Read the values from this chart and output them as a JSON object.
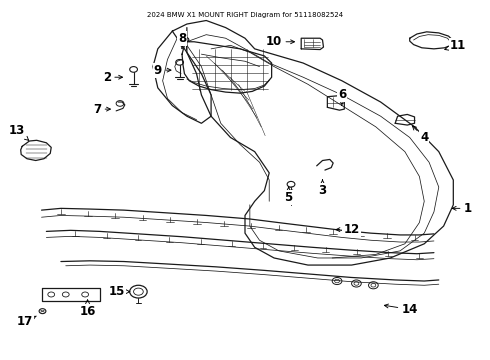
{
  "title": "2024 BMW X1 MOUNT RIGHT Diagram for 51118082524",
  "bg": "#ffffff",
  "lc": "#1a1a1a",
  "figsize": [
    4.9,
    3.6
  ],
  "dpi": 100,
  "font_size": 8.5,
  "label_positions": {
    "1": [
      0.96,
      0.42,
      0.92,
      0.42
    ],
    "2": [
      0.215,
      0.79,
      0.255,
      0.79
    ],
    "3": [
      0.66,
      0.47,
      0.66,
      0.51
    ],
    "4": [
      0.87,
      0.62,
      0.84,
      0.66
    ],
    "5": [
      0.59,
      0.45,
      0.59,
      0.49
    ],
    "6": [
      0.7,
      0.74,
      0.7,
      0.71
    ],
    "7": [
      0.195,
      0.7,
      0.23,
      0.7
    ],
    "8": [
      0.37,
      0.9,
      0.37,
      0.87
    ],
    "9": [
      0.32,
      0.81,
      0.355,
      0.81
    ],
    "10": [
      0.56,
      0.89,
      0.61,
      0.89
    ],
    "11": [
      0.94,
      0.88,
      0.905,
      0.865
    ],
    "12": [
      0.72,
      0.36,
      0.68,
      0.36
    ],
    "13": [
      0.03,
      0.64,
      0.055,
      0.61
    ],
    "14": [
      0.84,
      0.135,
      0.78,
      0.148
    ],
    "15": [
      0.235,
      0.185,
      0.27,
      0.185
    ],
    "16": [
      0.175,
      0.13,
      0.175,
      0.165
    ],
    "17": [
      0.045,
      0.1,
      0.075,
      0.12
    ]
  }
}
